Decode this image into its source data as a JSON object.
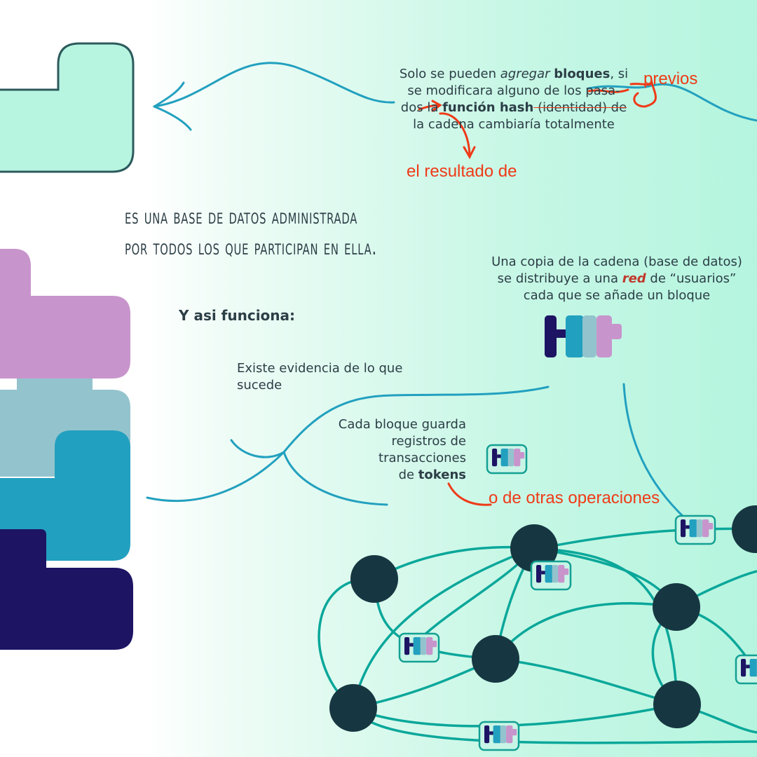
{
  "title": {
    "line1": "es una base de datos administrada",
    "line2": "por todos los que participan en ella."
  },
  "heading": "Y asi funciona:",
  "notes": {
    "solo_1a": "Solo se pueden ",
    "solo_1b": "agregar",
    "solo_1c": " ",
    "solo_1d": "bloques",
    "solo_1e": ", si",
    "solo_2": "se modificara alguno de los pasa-",
    "solo_3a": "dos la ",
    "solo_3b": "función hash",
    "solo_3c": " (identidad) de",
    "solo_4": "la cadena cambiaría totalmente",
    "copia_1": "Una copia de la cadena (base de datos)",
    "copia_2a": "se distribuye a una ",
    "copia_2b": "red",
    "copia_2c": " de “usuarios”",
    "copia_3": "cada que se añade un bloque",
    "evidencia_1": "Existe evidencia de lo que",
    "evidencia_2": "sucede",
    "cada_1": "Cada bloque guarda",
    "cada_2": "registros de",
    "cada_3": "transacciones",
    "cada_4a": "de ",
    "cada_4b": "tokens"
  },
  "annotations": {
    "previos": "previos",
    "resultado": "el resultado de",
    "otras": "o de otras operaciones"
  },
  "colors": {
    "mint": "#b8f5e1",
    "lilac": "#c894cc",
    "blue_gray": "#93c4cd",
    "teal": "#22a0bf",
    "navy": "#1d1464",
    "node": "#163741",
    "network_line": "#0aa79a",
    "annotation_red": "#ef3a17"
  },
  "icons": [
    "block-icon",
    "network-node"
  ]
}
